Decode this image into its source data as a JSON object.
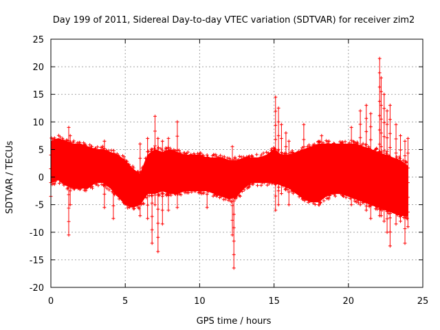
{
  "chart_data": {
    "type": "scatter",
    "title": "Day 199 of 2011, Sidereal Day-to-day VTEC variation (SDTVAR) for receiver zim2",
    "xlabel": "GPS time / hours",
    "ylabel": "SDTVAR / TECUs",
    "xlim": [
      0,
      25
    ],
    "ylim": [
      -20,
      25
    ],
    "xticks": [
      0,
      5,
      10,
      15,
      20,
      25
    ],
    "yticks": [
      -20,
      -15,
      -10,
      -5,
      0,
      5,
      10,
      15,
      20,
      25
    ],
    "xtick_labels": [
      "0",
      "5",
      "10",
      "15",
      "20",
      "25"
    ],
    "ytick_labels": [
      "-20",
      "-15",
      "-10",
      "-5",
      "0",
      "5",
      "10",
      "15",
      "20",
      "25"
    ],
    "grid": true,
    "marker": "+",
    "series_color": "#ff0000",
    "envelope": {
      "name": "SDTVAR dense band",
      "x": [
        0.0,
        0.5,
        1.0,
        1.5,
        2.0,
        2.5,
        3.0,
        3.5,
        4.0,
        4.5,
        5.0,
        5.5,
        6.0,
        6.5,
        7.0,
        7.5,
        8.0,
        8.5,
        9.0,
        9.5,
        10.0,
        10.5,
        11.0,
        11.5,
        12.0,
        12.5,
        13.0,
        13.5,
        14.0,
        14.5,
        15.0,
        15.5,
        16.0,
        16.5,
        17.0,
        17.5,
        18.0,
        18.5,
        19.0,
        19.5,
        20.0,
        20.5,
        21.0,
        21.5,
        22.0,
        22.5,
        23.0,
        23.5,
        24.0
      ],
      "upper": [
        6.5,
        7.0,
        6.5,
        6.0,
        6.0,
        5.5,
        5.0,
        5.0,
        4.5,
        4.0,
        3.0,
        1.5,
        0.5,
        4.0,
        5.0,
        4.5,
        5.0,
        4.5,
        4.0,
        4.0,
        4.0,
        3.5,
        3.5,
        3.5,
        3.0,
        3.0,
        3.5,
        3.5,
        3.5,
        4.0,
        5.0,
        4.0,
        4.0,
        4.5,
        5.0,
        5.5,
        6.0,
        6.0,
        6.0,
        6.0,
        6.0,
        6.0,
        5.5,
        5.0,
        4.5,
        4.0,
        3.5,
        3.0,
        2.0
      ],
      "lower": [
        -1.0,
        -0.5,
        -1.5,
        -2.0,
        -2.0,
        -2.0,
        -1.0,
        -1.0,
        -2.0,
        -3.5,
        -5.0,
        -5.5,
        -5.0,
        -3.0,
        -3.0,
        -2.5,
        -3.0,
        -3.0,
        -2.5,
        -2.5,
        -2.5,
        -2.5,
        -3.0,
        -3.5,
        -4.0,
        -3.5,
        -2.0,
        -1.0,
        -1.0,
        -1.0,
        -1.0,
        -1.5,
        -2.0,
        -3.0,
        -4.0,
        -4.5,
        -4.5,
        -3.5,
        -3.0,
        -3.0,
        -3.5,
        -4.0,
        -4.5,
        -5.0,
        -5.5,
        -6.0,
        -6.5,
        -7.0,
        -7.0
      ]
    },
    "spikes": [
      {
        "x": 0.0,
        "lo": -3.5,
        "hi": 4.0
      },
      {
        "x": 1.2,
        "lo": -10.5,
        "hi": 9.0
      },
      {
        "x": 1.3,
        "lo": -5.0,
        "hi": 7.5
      },
      {
        "x": 3.6,
        "lo": -5.5,
        "hi": 6.5
      },
      {
        "x": 4.2,
        "lo": -7.5,
        "hi": 4.0
      },
      {
        "x": 6.0,
        "lo": -7.0,
        "hi": 6.0
      },
      {
        "x": 6.5,
        "lo": -7.5,
        "hi": 7.0
      },
      {
        "x": 6.8,
        "lo": -12.0,
        "hi": 5.0
      },
      {
        "x": 7.0,
        "lo": -5.0,
        "hi": 11.0
      },
      {
        "x": 7.2,
        "lo": -13.5,
        "hi": 7.0
      },
      {
        "x": 7.5,
        "lo": -8.5,
        "hi": 6.5
      },
      {
        "x": 7.9,
        "lo": -6.0,
        "hi": 7.0
      },
      {
        "x": 8.5,
        "lo": -5.5,
        "hi": 10.0
      },
      {
        "x": 10.5,
        "lo": -5.5,
        "hi": 4.0
      },
      {
        "x": 12.2,
        "lo": -10.5,
        "hi": 5.5
      },
      {
        "x": 12.3,
        "lo": -16.5,
        "hi": 3.0
      },
      {
        "x": 15.1,
        "lo": -6.0,
        "hi": 14.5
      },
      {
        "x": 15.3,
        "lo": -5.0,
        "hi": 12.5
      },
      {
        "x": 15.5,
        "lo": -3.0,
        "hi": 9.5
      },
      {
        "x": 15.8,
        "lo": -2.0,
        "hi": 8.0
      },
      {
        "x": 16.0,
        "lo": -5.0,
        "hi": 6.5
      },
      {
        "x": 17.0,
        "lo": -4.0,
        "hi": 9.5
      },
      {
        "x": 18.2,
        "lo": -3.5,
        "hi": 7.5
      },
      {
        "x": 20.2,
        "lo": -5.0,
        "hi": 9.0
      },
      {
        "x": 20.8,
        "lo": -5.0,
        "hi": 12.0
      },
      {
        "x": 21.2,
        "lo": -6.0,
        "hi": 13.0
      },
      {
        "x": 21.5,
        "lo": -7.5,
        "hi": 11.5
      },
      {
        "x": 22.1,
        "lo": -7.0,
        "hi": 21.5
      },
      {
        "x": 22.2,
        "lo": -7.0,
        "hi": 18.0
      },
      {
        "x": 22.4,
        "lo": -8.0,
        "hi": 15.0
      },
      {
        "x": 22.6,
        "lo": -10.0,
        "hi": 12.0
      },
      {
        "x": 22.8,
        "lo": -12.5,
        "hi": 13.0
      },
      {
        "x": 23.2,
        "lo": -8.5,
        "hi": 9.5
      },
      {
        "x": 23.5,
        "lo": -8.0,
        "hi": 7.5
      },
      {
        "x": 23.8,
        "lo": -12.0,
        "hi": 6.5
      },
      {
        "x": 24.0,
        "lo": -9.0,
        "hi": 7.0
      }
    ]
  }
}
